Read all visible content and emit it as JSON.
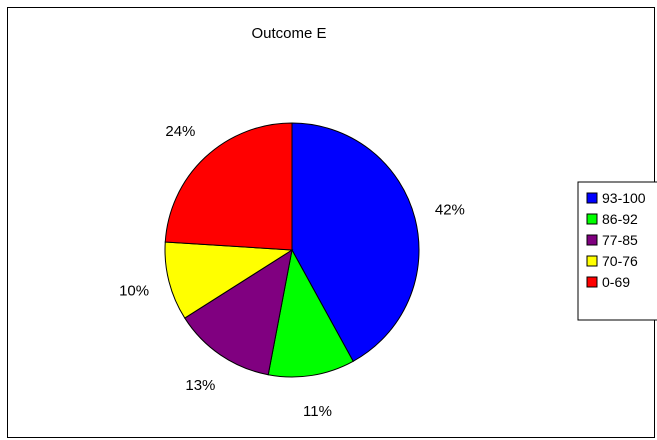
{
  "chart_data": {
    "type": "pie",
    "title": "Outcome E",
    "categories": [
      "93-100",
      "86-92",
      "77-85",
      "70-76",
      "0-69"
    ],
    "values": [
      42,
      11,
      13,
      10,
      24
    ],
    "data_labels": [
      "42%",
      "11%",
      "13%",
      "10%",
      "24%"
    ],
    "colors": [
      "#0000ff",
      "#00ff00",
      "#800080",
      "#ffff00",
      "#ff0000"
    ],
    "legend_position": "right"
  }
}
